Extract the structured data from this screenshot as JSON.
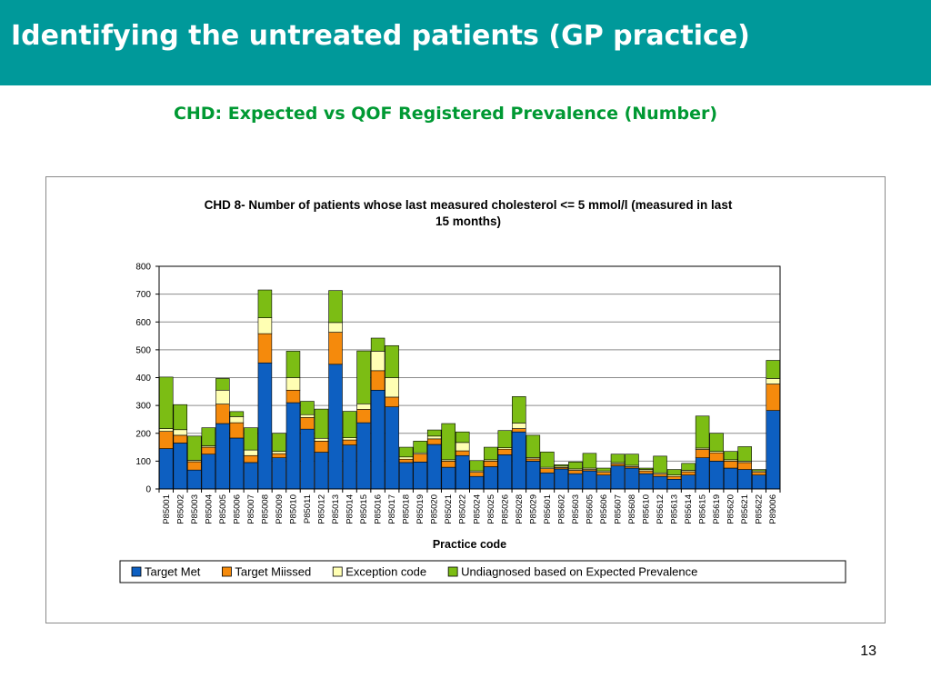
{
  "slide": {
    "title": "Identifying the untreated patients (GP practice)",
    "subtitle": "CHD: Expected vs QOF Registered Prevalence (Number)",
    "page_number": "13"
  },
  "colors": {
    "header_bar": "#00999a",
    "subtitle": "#009933",
    "series": [
      "#0d5fc1",
      "#f58a0c",
      "#ffffb3",
      "#7cbd14"
    ]
  },
  "chart_data": {
    "type": "bar",
    "stacked": true,
    "title": "CHD 8- Number of patients whose last measured cholesterol <= 5 mmol/l (measured in last 15 months)",
    "title_lines": [
      "CHD 8- Number of patients whose last measured cholesterol <= 5 mmol/l (measured in last",
      "15 months)"
    ],
    "xlabel": "Practice code",
    "ylabel": "",
    "ylim": [
      0,
      800
    ],
    "yticks": [
      0,
      100,
      200,
      300,
      400,
      500,
      600,
      700,
      800
    ],
    "grid": true,
    "legend": "bottom",
    "categories": [
      "P85001",
      "P85002",
      "P85003",
      "P85004",
      "P85005",
      "P85006",
      "P85007",
      "P85008",
      "P85009",
      "P85010",
      "P85011",
      "P85012",
      "P85013",
      "P85014",
      "P85015",
      "P85016",
      "P85017",
      "P85018",
      "P85019",
      "P85020",
      "P85021",
      "P85022",
      "P85024",
      "P85025",
      "P85026",
      "P85028",
      "P85029",
      "P85601",
      "P85602",
      "P85603",
      "P85605",
      "P85606",
      "P85607",
      "P85608",
      "P85610",
      "P85612",
      "P85613",
      "P85614",
      "P85615",
      "P85619",
      "P85620",
      "P85621",
      "P85622",
      "P89006"
    ],
    "series": [
      {
        "name": "Target Met",
        "values": [
          145,
          165,
          68,
          125,
          235,
          183,
          95,
          453,
          112,
          310,
          215,
          132,
          448,
          158,
          238,
          355,
          295,
          95,
          97,
          160,
          78,
          120,
          45,
          80,
          123,
          205,
          100,
          58,
          72,
          55,
          65,
          50,
          83,
          75,
          55,
          45,
          35,
          50,
          112,
          100,
          75,
          70,
          50,
          282
        ]
      },
      {
        "name": "Target Miissed",
        "values": [
          62,
          28,
          30,
          25,
          70,
          55,
          25,
          105,
          15,
          45,
          42,
          40,
          115,
          18,
          48,
          70,
          35,
          12,
          28,
          20,
          22,
          17,
          15,
          20,
          20,
          12,
          8,
          15,
          5,
          12,
          5,
          10,
          7,
          5,
          10,
          8,
          10,
          12,
          30,
          30,
          25,
          25,
          10,
          95
        ]
      },
      {
        "name": "Exception code",
        "values": [
          10,
          20,
          5,
          5,
          50,
          22,
          20,
          57,
          8,
          45,
          10,
          10,
          35,
          8,
          20,
          70,
          70,
          8,
          5,
          10,
          5,
          30,
          5,
          5,
          5,
          20,
          5,
          5,
          5,
          5,
          5,
          5,
          5,
          5,
          5,
          5,
          5,
          5,
          5,
          5,
          5,
          5,
          5,
          20
        ]
      },
      {
        "name": "Undiagnosed based on Expected Prevalence",
        "values": [
          185,
          90,
          87,
          65,
          42,
          18,
          80,
          100,
          65,
          95,
          48,
          105,
          115,
          95,
          190,
          47,
          115,
          35,
          42,
          22,
          130,
          38,
          37,
          45,
          62,
          95,
          80,
          55,
          5,
          25,
          53,
          10,
          30,
          40,
          5,
          60,
          20,
          25,
          115,
          65,
          30,
          52,
          5,
          65
        ]
      }
    ]
  }
}
